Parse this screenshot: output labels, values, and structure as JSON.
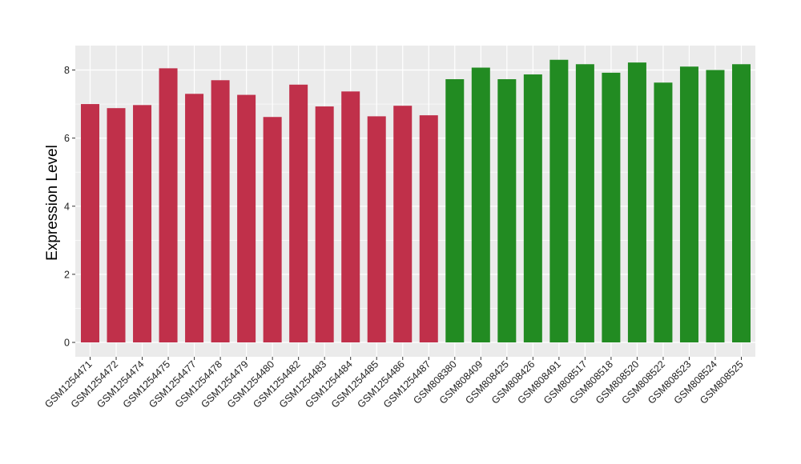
{
  "chart_data": {
    "type": "bar",
    "title": "",
    "xlabel": "",
    "ylabel": "Expression Level",
    "ylim": [
      0,
      8.7
    ],
    "yticks": [
      0,
      2,
      4,
      6,
      8
    ],
    "grid": true,
    "categories": [
      "GSM1254471",
      "GSM1254472",
      "GSM1254474",
      "GSM1254475",
      "GSM1254477",
      "GSM1254478",
      "GSM1254479",
      "GSM1254480",
      "GSM1254482",
      "GSM1254483",
      "GSM1254484",
      "GSM1254485",
      "GSM1254486",
      "GSM1254487",
      "GSM808380",
      "GSM808409",
      "GSM808425",
      "GSM808426",
      "GSM808491",
      "GSM808517",
      "GSM808518",
      "GSM808520",
      "GSM808522",
      "GSM808523",
      "GSM808524",
      "GSM808525"
    ],
    "values": [
      7.0,
      6.88,
      6.97,
      8.05,
      7.3,
      7.7,
      7.27,
      6.62,
      7.57,
      6.93,
      7.37,
      6.64,
      6.95,
      6.67,
      7.73,
      8.07,
      7.73,
      7.87,
      8.3,
      8.17,
      7.92,
      8.22,
      7.63,
      8.1,
      8.0,
      8.17
    ],
    "bar_colors": [
      "#c0304a",
      "#c0304a",
      "#c0304a",
      "#c0304a",
      "#c0304a",
      "#c0304a",
      "#c0304a",
      "#c0304a",
      "#c0304a",
      "#c0304a",
      "#c0304a",
      "#c0304a",
      "#c0304a",
      "#c0304a",
      "#228b22",
      "#228b22",
      "#228b22",
      "#228b22",
      "#228b22",
      "#228b22",
      "#228b22",
      "#228b22",
      "#228b22",
      "#228b22",
      "#228b22",
      "#228b22"
    ],
    "panel_background": "#ebebeb",
    "grid_color": "#ffffff"
  }
}
